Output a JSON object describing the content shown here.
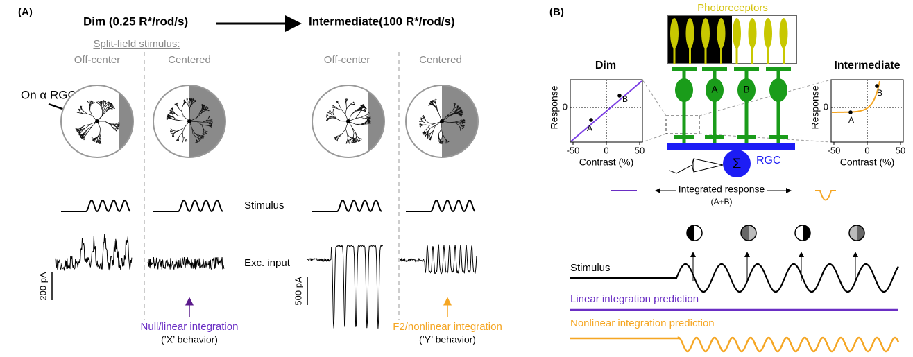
{
  "panel_a": {
    "label": "(A)",
    "dim_title": "Dim (0.25 R*/rod/s)",
    "intermediate_title": "Intermediate(100 R*/rod/s)",
    "split_field_label": "Split-field stimulus:",
    "columns": [
      "Off-center",
      "Centered",
      "Off-center",
      "Centered"
    ],
    "cell_label": "On α RGC",
    "row_labels": [
      "Stimulus",
      "Exc. input"
    ],
    "scale_bars": [
      "200 pA",
      "500 pA"
    ],
    "dim_outcome": {
      "title": "Null/linear integration",
      "behavior": "(’X’ behavior)"
    },
    "intermediate_outcome": {
      "title": "F2/nonlinear integration",
      "behavior": "(’Y’ behavior)"
    }
  },
  "panel_b": {
    "label": "(B)",
    "photoreceptors": "Photoreceptors",
    "bipolar_labels": [
      "A",
      "B"
    ],
    "rgc_label": "RGC",
    "sum_symbol": "Σ",
    "dim_plot": {
      "title": "Dim",
      "x_label": "Contrast (%)",
      "y_label": "Response",
      "x_ticks": [
        "-50",
        "0",
        "50"
      ],
      "y_tick": "0"
    },
    "intermediate_plot": {
      "title": "Intermediate",
      "x_label": "Contrast (%)",
      "y_label": "Response",
      "x_ticks": [
        "-50",
        "0",
        "50"
      ],
      "y_tick": "0"
    },
    "integrated_response": "Integrated response",
    "integrated_sub": "(A+B)",
    "traces": [
      "Stimulus",
      "Linear integration prediction",
      "Nonlinear integration prediction"
    ]
  }
}
